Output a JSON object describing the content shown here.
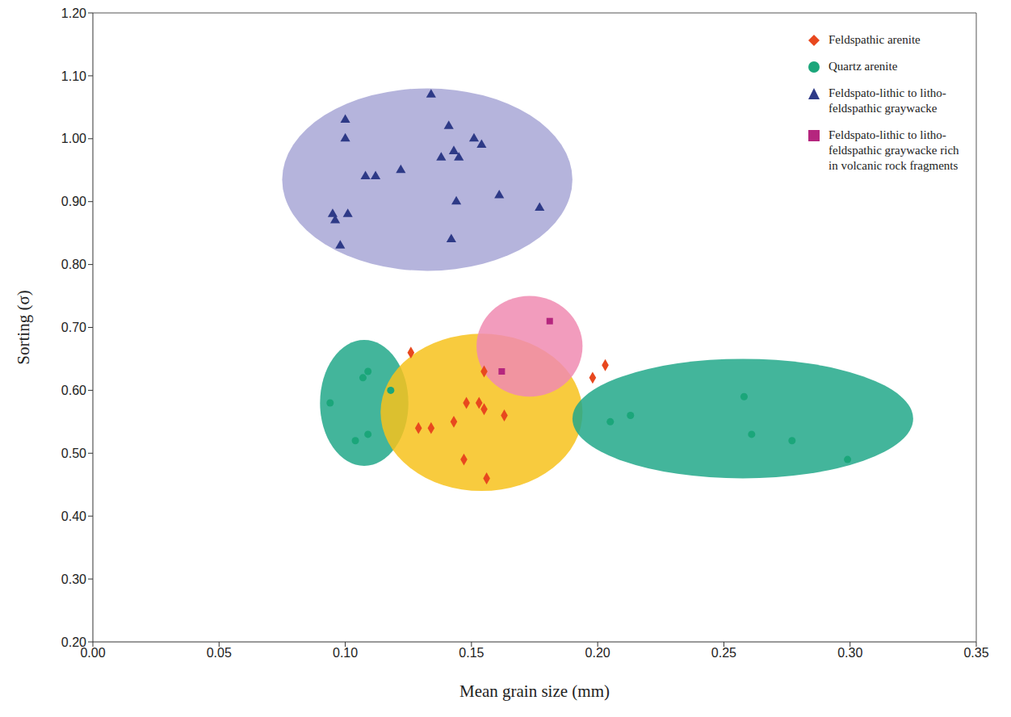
{
  "chart_data": {
    "type": "scatter",
    "x_label": "Mean grain size (mm)",
    "y_label": "Sorting (σ)",
    "xlim": [
      0,
      0.35
    ],
    "ylim": [
      0.2,
      1.2
    ],
    "xticks": [
      {
        "value": 0,
        "label": "0.00"
      },
      {
        "value": 0.05,
        "label": "0.05"
      },
      {
        "value": 0.1,
        "label": "0.10"
      },
      {
        "value": 0.15,
        "label": "0.15"
      },
      {
        "value": 0.2,
        "label": "0.20"
      },
      {
        "value": 0.25,
        "label": "0.25"
      },
      {
        "value": 0.3,
        "label": "0.30"
      },
      {
        "value": 0.35,
        "label": "0.35"
      }
    ],
    "yticks": [
      {
        "value": 0.2,
        "label": "0.20"
      },
      {
        "value": 0.3,
        "label": "0.30"
      },
      {
        "value": 0.4,
        "label": "0.40"
      },
      {
        "value": 0.5,
        "label": "0.50"
      },
      {
        "value": 0.6,
        "label": "0.60"
      },
      {
        "value": 0.7,
        "label": "0.70"
      },
      {
        "value": 0.8,
        "label": "0.80"
      },
      {
        "value": 0.9,
        "label": "0.90"
      },
      {
        "value": 1.0,
        "label": "1.00"
      },
      {
        "value": 1.1,
        "label": "1.10"
      },
      {
        "value": 1.2,
        "label": "1.20"
      }
    ],
    "grid": false,
    "legend": "upper right",
    "regions": [
      {
        "x1": 0.075,
        "x2": 0.19,
        "y1": 0.79,
        "y2": 1.08,
        "color": "#a8a7d6"
      },
      {
        "x1": 0.09,
        "x2": 0.125,
        "y1": 0.48,
        "y2": 0.68,
        "color": "#22a88a"
      },
      {
        "x1": 0.114,
        "x2": 0.194,
        "y1": 0.44,
        "y2": 0.69,
        "color": "#f7c21c"
      },
      {
        "x1": 0.152,
        "x2": 0.194,
        "y1": 0.59,
        "y2": 0.75,
        "color": "#f08bb2"
      },
      {
        "x1": 0.19,
        "x2": 0.325,
        "y1": 0.46,
        "y2": 0.65,
        "color": "#22a88a"
      }
    ],
    "series": [
      {
        "name": "Feldspathic arenite",
        "color": "#e8481e",
        "marker": "diamond",
        "x": [
          0.126,
          0.129,
          0.134,
          0.143,
          0.148,
          0.147,
          0.153,
          0.155,
          0.155,
          0.156,
          0.163,
          0.198,
          0.203
        ],
        "values": [
          0.66,
          0.54,
          0.54,
          0.55,
          0.58,
          0.49,
          0.58,
          0.63,
          0.57,
          0.46,
          0.56,
          0.62,
          0.64
        ]
      },
      {
        "name": "Quartz arenite",
        "color": "#1ba67a",
        "marker": "circle",
        "x": [
          0.094,
          0.104,
          0.107,
          0.109,
          0.109,
          0.118,
          0.205,
          0.213,
          0.258,
          0.261,
          0.277,
          0.299
        ],
        "values": [
          0.58,
          0.52,
          0.62,
          0.63,
          0.53,
          0.6,
          0.55,
          0.56,
          0.59,
          0.53,
          0.52,
          0.49
        ]
      },
      {
        "name": "Feldspato-lithic to litho-feldspathic graywacke",
        "color": "#2e3a87",
        "marker": "triangle",
        "x": [
          0.095,
          0.096,
          0.098,
          0.1,
          0.1,
          0.101,
          0.108,
          0.112,
          0.122,
          0.134,
          0.138,
          0.141,
          0.143,
          0.142,
          0.145,
          0.144,
          0.151,
          0.154,
          0.161,
          0.177
        ],
        "values": [
          0.88,
          0.87,
          0.83,
          1.03,
          1.0,
          0.88,
          0.94,
          0.94,
          0.95,
          1.07,
          0.97,
          1.02,
          0.98,
          0.84,
          0.97,
          0.9,
          1.0,
          0.99,
          0.91,
          0.89
        ]
      },
      {
        "name": "Feldspato-lithic to litho-feldspathic graywacke rich in volcanic rock fragments",
        "color": "#b5267e",
        "marker": "square",
        "x": [
          0.162,
          0.181
        ],
        "values": [
          0.63,
          0.71
        ]
      }
    ]
  }
}
